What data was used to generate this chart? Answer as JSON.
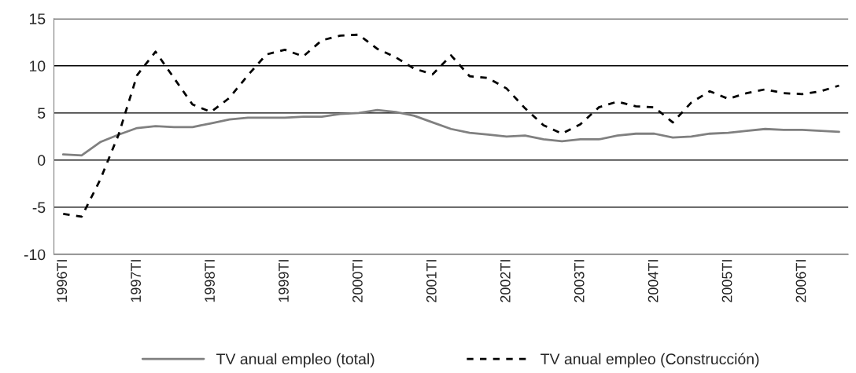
{
  "chart_data": {
    "type": "line",
    "categories": [
      "1996TI",
      null,
      null,
      null,
      "1997TI",
      null,
      null,
      null,
      "1998TI",
      null,
      null,
      null,
      "1999TI",
      null,
      null,
      null,
      "2000TI",
      null,
      null,
      null,
      "2001TI",
      null,
      null,
      null,
      "2002TI",
      null,
      null,
      null,
      "2003TI",
      null,
      null,
      null,
      "2004TI",
      null,
      null,
      null,
      "2005TI",
      null,
      null,
      null,
      "2006TI",
      null,
      null
    ],
    "series": [
      {
        "name": "TV anual empleo (total)",
        "color": "#808080",
        "line_style": "solid",
        "values": [
          0.6,
          0.5,
          1.9,
          2.7,
          3.4,
          3.6,
          3.5,
          3.5,
          3.9,
          4.3,
          4.5,
          4.5,
          4.5,
          4.6,
          4.6,
          4.9,
          5.0,
          5.3,
          5.1,
          4.7,
          4.0,
          3.3,
          2.9,
          2.7,
          2.5,
          2.6,
          2.2,
          2.0,
          2.2,
          2.2,
          2.6,
          2.8,
          2.8,
          2.4,
          2.5,
          2.8,
          2.9,
          3.1,
          3.3,
          3.2,
          3.2,
          3.1,
          3.0
        ]
      },
      {
        "name": "TV anual empleo (Construcción)",
        "color": "#000000",
        "line_style": "dashed",
        "values": [
          -5.7,
          -6.0,
          -2.1,
          2.7,
          9.0,
          11.5,
          8.7,
          5.9,
          5.1,
          6.6,
          9.0,
          11.2,
          11.7,
          11.0,
          12.7,
          13.2,
          13.3,
          11.8,
          10.9,
          9.7,
          9.1,
          11.1,
          8.9,
          8.7,
          7.6,
          5.5,
          3.7,
          2.8,
          3.8,
          5.6,
          6.2,
          5.7,
          5.6,
          4.0,
          6.1,
          7.3,
          6.5,
          7.1,
          7.5,
          7.1,
          7.0,
          7.3,
          7.9
        ]
      }
    ],
    "ylim": [
      -10,
      15
    ],
    "yticks": [
      -10,
      -5,
      0,
      5,
      10,
      15
    ],
    "grid": "y",
    "legend": "bottom",
    "marker": "none"
  }
}
